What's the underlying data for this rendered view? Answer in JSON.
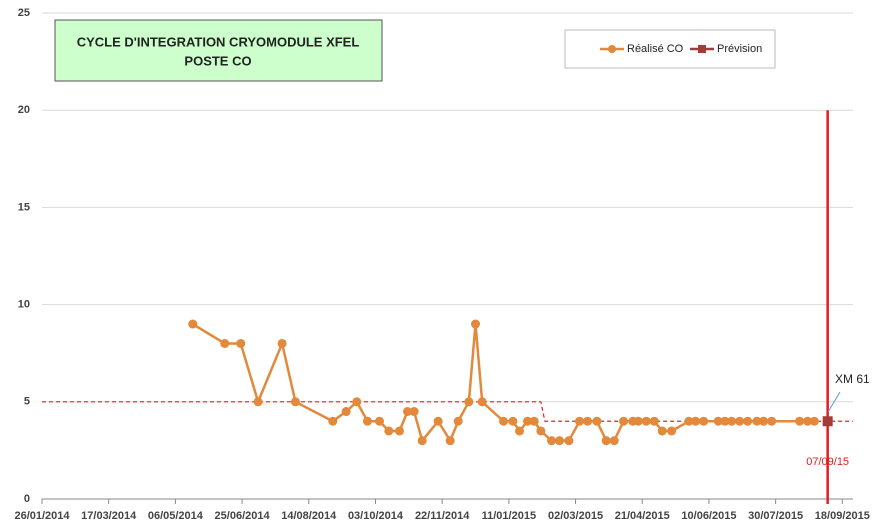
{
  "chart_data": {
    "type": "line",
    "title_lines": [
      "CYCLE D'INTEGRATION CRYOMODULE XFEL",
      "POSTE CO"
    ],
    "xlim": [
      "26/01/2014",
      "26/09/2015"
    ],
    "xticks": [
      "26/01/2014",
      "17/03/2014",
      "06/05/2014",
      "25/06/2014",
      "14/08/2014",
      "03/10/2014",
      "22/11/2014",
      "11/01/2015",
      "02/03/2015",
      "21/04/2015",
      "10/06/2015",
      "30/07/2015",
      "18/09/2015"
    ],
    "ylim": [
      0,
      25
    ],
    "yticks": [
      0,
      5,
      10,
      15,
      20,
      25
    ],
    "grid": true,
    "legend": "top-right",
    "series": [
      {
        "name": "Réalisé CO",
        "color": "#e2893b",
        "x": [
          "19/05/2014",
          "12/06/2014",
          "24/06/2014",
          "07/07/2014",
          "25/07/2014",
          "04/08/2014",
          "01/09/2014",
          "11/09/2014",
          "19/09/2014",
          "27/09/2014",
          "06/10/2014",
          "13/10/2014",
          "21/10/2014",
          "27/10/2014",
          "01/11/2014",
          "07/11/2014",
          "19/11/2014",
          "28/11/2014",
          "04/12/2014",
          "12/12/2014",
          "17/12/2014",
          "22/12/2014",
          "07/01/2015",
          "14/01/2015",
          "19/01/2015",
          "25/01/2015",
          "30/01/2015",
          "04/02/2015",
          "12/02/2015",
          "18/02/2015",
          "25/02/2015",
          "05/03/2015",
          "11/03/2015",
          "18/03/2015",
          "25/03/2015",
          "31/03/2015",
          "07/04/2015",
          "14/04/2015",
          "18/04/2015",
          "24/04/2015",
          "30/04/2015",
          "06/05/2015",
          "13/05/2015",
          "26/05/2015",
          "31/05/2015",
          "06/06/2015",
          "17/06/2015",
          "22/06/2015",
          "27/06/2015",
          "03/07/2015",
          "09/07/2015",
          "16/07/2015",
          "21/07/2015",
          "27/07/2015",
          "17/08/2015",
          "23/08/2015",
          "28/08/2015"
        ],
        "values": [
          9,
          8,
          8,
          5,
          8,
          5,
          4,
          4.5,
          5,
          4,
          4,
          3.5,
          3.5,
          4.5,
          4.5,
          3,
          4,
          3,
          4,
          5,
          9,
          5,
          4,
          4,
          3.5,
          4,
          4,
          3.5,
          3,
          3,
          3,
          4,
          4,
          4,
          3,
          3,
          4,
          4,
          4,
          4,
          4,
          3.5,
          3.5,
          4,
          4,
          4,
          4,
          4,
          4,
          4,
          4,
          4,
          4,
          4,
          4,
          4,
          4
        ]
      },
      {
        "name": "Prévision",
        "color": "#a33b3b",
        "x": [
          "07/09/2015"
        ],
        "values": [
          4
        ]
      }
    ],
    "target_line": {
      "color": "#e02020",
      "x": [
        "26/01/2014",
        "04/02/2015",
        "07/02/2015",
        "26/09/2015"
      ],
      "values": [
        5,
        5,
        4,
        4
      ]
    },
    "marker_line": {
      "x": "07/09/2015",
      "label": "07/09/15",
      "color": "#e02020"
    },
    "annotation": "XM 61"
  }
}
